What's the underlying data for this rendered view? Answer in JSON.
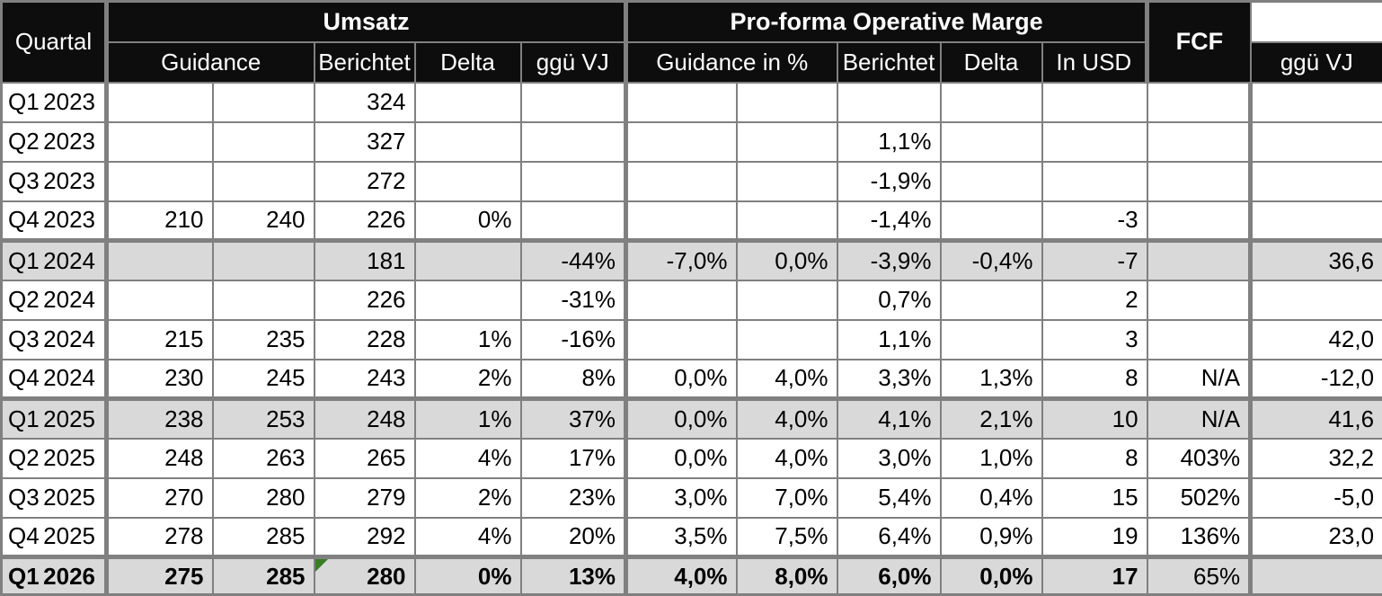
{
  "colors": {
    "header_bg": "#0d0d0d",
    "header_text": "#ffffff",
    "grid_line": "#808080",
    "shaded_row": "#d9d9d9",
    "flag_green": "#3a7d27",
    "text": "#000000"
  },
  "table": {
    "header": {
      "quartal": "Quartal",
      "umsatz": "Umsatz",
      "proforma": "Pro-forma Operative Marge",
      "fcf": "FCF",
      "umsatz_sub": [
        "Guidance",
        "Berichtet",
        "Delta",
        "ggü VJ"
      ],
      "proforma_sub": [
        "Guidance in %",
        "Berichtet",
        "Delta",
        "In USD",
        "ggü VJ"
      ]
    },
    "columns_order": [
      "umsatz_guidance_low",
      "umsatz_guidance_high",
      "umsatz_berichtet",
      "umsatz_delta",
      "umsatz_ggue_vj",
      "marge_guidance_low",
      "marge_guidance_high",
      "marge_berichtet",
      "marge_delta",
      "marge_in_usd",
      "marge_ggue_vj",
      "fcf"
    ],
    "rows": [
      {
        "quarter": "Q1",
        "year": "2023",
        "shaded": false,
        "thick_top": false,
        "bold": false,
        "cells": [
          "",
          "",
          "324",
          "",
          "",
          "",
          "",
          "",
          "",
          "",
          "",
          ""
        ]
      },
      {
        "quarter": "Q2",
        "year": "2023",
        "shaded": false,
        "thick_top": false,
        "bold": false,
        "cells": [
          "",
          "",
          "327",
          "",
          "",
          "",
          "",
          "1,1%",
          "",
          "",
          "",
          ""
        ]
      },
      {
        "quarter": "Q3",
        "year": "2023",
        "shaded": false,
        "thick_top": false,
        "bold": false,
        "cells": [
          "",
          "",
          "272",
          "",
          "",
          "",
          "",
          "-1,9%",
          "",
          "",
          "",
          ""
        ]
      },
      {
        "quarter": "Q4",
        "year": "2023",
        "shaded": false,
        "thick_top": false,
        "bold": false,
        "cells": [
          "210",
          "240",
          "226",
          "0%",
          "",
          "",
          "",
          "-1,4%",
          "",
          "-3",
          "",
          ""
        ]
      },
      {
        "quarter": "Q1",
        "year": "2024",
        "shaded": true,
        "thick_top": true,
        "bold": false,
        "cells": [
          "",
          "",
          "181",
          "",
          "-44%",
          "-7,0%",
          "0,0%",
          "-3,9%",
          "-0,4%",
          "-7",
          "",
          "36,6"
        ]
      },
      {
        "quarter": "Q2",
        "year": "2024",
        "shaded": false,
        "thick_top": false,
        "bold": false,
        "cells": [
          "",
          "",
          "226",
          "",
          "-31%",
          "",
          "",
          "0,7%",
          "",
          "2",
          "",
          ""
        ]
      },
      {
        "quarter": "Q3",
        "year": "2024",
        "shaded": false,
        "thick_top": false,
        "bold": false,
        "cells": [
          "215",
          "235",
          "228",
          "1%",
          "-16%",
          "",
          "",
          "1,1%",
          "",
          "3",
          "",
          "42,0"
        ]
      },
      {
        "quarter": "Q4",
        "year": "2024",
        "shaded": false,
        "thick_top": false,
        "bold": false,
        "cells": [
          "230",
          "245",
          "243",
          "2%",
          "8%",
          "0,0%",
          "4,0%",
          "3,3%",
          "1,3%",
          "8",
          "N/A",
          "-12,0"
        ]
      },
      {
        "quarter": "Q1",
        "year": "2025",
        "shaded": true,
        "thick_top": true,
        "bold": false,
        "cells": [
          "238",
          "253",
          "248",
          "1%",
          "37%",
          "0,0%",
          "4,0%",
          "4,1%",
          "2,1%",
          "10",
          "N/A",
          "41,6"
        ]
      },
      {
        "quarter": "Q2",
        "year": "2025",
        "shaded": false,
        "thick_top": false,
        "bold": false,
        "cells": [
          "248",
          "263",
          "265",
          "4%",
          "17%",
          "0,0%",
          "4,0%",
          "3,0%",
          "1,0%",
          "8",
          "403%",
          "32,2"
        ]
      },
      {
        "quarter": "Q3",
        "year": "2025",
        "shaded": false,
        "thick_top": false,
        "bold": false,
        "cells": [
          "270",
          "280",
          "279",
          "2%",
          "23%",
          "3,0%",
          "7,0%",
          "5,4%",
          "0,4%",
          "15",
          "502%",
          "-5,0"
        ]
      },
      {
        "quarter": "Q4",
        "year": "2025",
        "shaded": false,
        "thick_top": false,
        "bold": false,
        "cells": [
          "278",
          "285",
          "292",
          "4%",
          "20%",
          "3,5%",
          "7,5%",
          "6,4%",
          "0,9%",
          "19",
          "136%",
          "23,0"
        ]
      },
      {
        "quarter": "Q1",
        "year": "2026",
        "shaded": true,
        "thick_top": true,
        "bold": true,
        "not_bold_cells": [
          10
        ],
        "flag_cell": 2,
        "cells": [
          "275",
          "285",
          "280",
          "0%",
          "13%",
          "4,0%",
          "8,0%",
          "6,0%",
          "0,0%",
          "17",
          "65%",
          ""
        ]
      }
    ]
  }
}
